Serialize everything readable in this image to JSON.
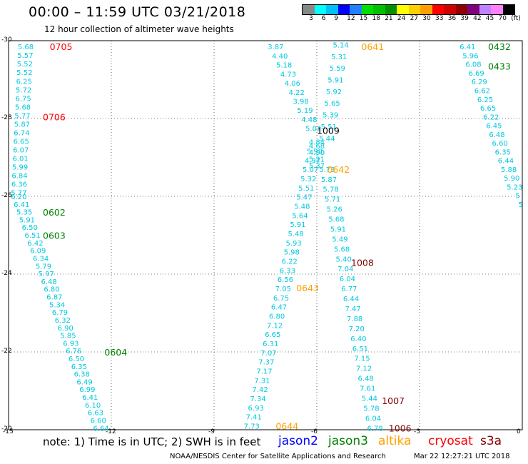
{
  "header": {
    "title": "00:00 – 11:59 UTC 03/21/2018",
    "subtitle": "12 hour collection of altimeter wave heights"
  },
  "scale": {
    "colors": [
      "#888888",
      "#00ffff",
      "#00bfff",
      "#0000ff",
      "#2080ff",
      "#00e000",
      "#00c000",
      "#009000",
      "#ffff00",
      "#ffd000",
      "#ffa000",
      "#ff0000",
      "#d00000",
      "#900000",
      "#800080",
      "#c080ff",
      "#ff80ff",
      "#000000"
    ],
    "labels": [
      "3",
      "6",
      "9",
      "12",
      "15",
      "18",
      "21",
      "24",
      "27",
      "30",
      "33",
      "36",
      "39",
      "42",
      "45",
      "70",
      "(ft)"
    ]
  },
  "note": "note:  1) Time is in UTC;  2) SWH is in feet",
  "legend": [
    {
      "name": "jason2",
      "color": "#0000ff"
    },
    {
      "name": "jason3",
      "color": "#008000"
    },
    {
      "name": "altika",
      "color": "#ffa000"
    },
    {
      "name": "cryosat",
      "color": "#ff0000"
    },
    {
      "name": "s3a",
      "color": "#800000"
    }
  ],
  "credit": "NOAA/NESDIS Center for Satellite Applications and Research",
  "credit_time": "Mar 22 12:27:21 UTC 2018",
  "chart_data": {
    "type": "scatter",
    "xlim": [
      -15,
      0
    ],
    "ylim": [
      -30,
      -20
    ],
    "x_ticks": [
      "-15",
      "-12",
      "-9",
      "-6",
      "-3",
      "0"
    ],
    "y_ticks": [
      "-20",
      "-22",
      "-24",
      "-26",
      "-28",
      "-30"
    ],
    "grid": true,
    "tracks": [
      {
        "x1": -12.3,
        "y1": -20.05,
        "x2": -14.7,
        "y2": -26.0,
        "values": [
          "6.64",
          "6.60",
          "6.63",
          "6.10",
          "6.41",
          "6.99",
          "6.49",
          "6.38",
          "6.35",
          "6.50",
          "6.76",
          "6.93",
          "5.85",
          "6.90",
          "6.32",
          "6.79",
          "5.34",
          "6.87",
          "6.80",
          "6.48",
          "5.97",
          "5.79",
          "6.34",
          "6.09",
          "6.42",
          "6.51",
          "6.50",
          "5.91",
          "5.35",
          "6.41",
          "6.20"
        ]
      },
      {
        "x1": -14.7,
        "y1": -26.1,
        "x2": -14.5,
        "y2": -29.85,
        "values": [
          "5.77",
          "6.36",
          "6.84",
          "5.99",
          "6.01",
          "6.07",
          "6.65",
          "6.74",
          "5.87",
          "5.77",
          "5.68",
          "6.75",
          "5.72",
          "6.25",
          "5.52",
          "5.52",
          "5.57",
          "5.68"
        ]
      },
      {
        "x1": -7.9,
        "y1": -20.1,
        "x2": -6.0,
        "y2": -27.4,
        "values": [
          "7.73",
          "7.41",
          "6.93",
          "7.34",
          "7.42",
          "7.31",
          "7.17",
          "7.37",
          "7.07",
          "6.31",
          "6.65",
          "7.12",
          "6.80",
          "6.47",
          "6.75",
          "7.05",
          "6.56",
          "6.33",
          "6.22",
          "5.98",
          "5.93",
          "5.48",
          "5.91",
          "5.64",
          "5.48",
          "5.47",
          "5.51",
          "5.32",
          "5.07",
          "4.97",
          "5.90",
          "4.84"
        ]
      },
      {
        "x1": -4.3,
        "y1": -20.05,
        "x2": -5.7,
        "y2": -26.7,
        "values": [
          "6.78",
          "6.04",
          "5.78",
          "5.44",
          "7.61",
          "6.48",
          "7.12",
          "7.15",
          "6.51",
          "6.40",
          "7.20",
          "7.88",
          "7.47",
          "6.44",
          "6.77",
          "6.04",
          "7.04",
          "5.40",
          "5.68",
          "5.49",
          "5.91",
          "5.68",
          "5.26",
          "5.71",
          "5.78",
          "5.87",
          "5.73"
        ]
      },
      {
        "x1": -5.7,
        "y1": -27.5,
        "x2": -5.3,
        "y2": -29.9,
        "values": [
          "5.44",
          "5.51",
          "5.39",
          "5.65",
          "5.92",
          "5.91",
          "5.59",
          "5.31",
          "5.14"
        ]
      },
      {
        "x1": -6.0,
        "y1": -26.8,
        "x2": -6.0,
        "y2": -27.3,
        "values": [
          "5.37",
          "5.21",
          "4.90",
          "4.68"
        ]
      },
      {
        "x1": -6.1,
        "y1": -27.75,
        "x2": -7.2,
        "y2": -29.85,
        "values": [
          "5.02",
          "4.48",
          "5.19",
          "3.98",
          "4.22",
          "4.06",
          "4.73",
          "5.18",
          "4.40",
          "3.87"
        ]
      },
      {
        "x1": -0.05,
        "y1": -25.8,
        "x2": -1.6,
        "y2": -29.85,
        "values": [
          "5",
          "5",
          "5.23",
          "5.90",
          "5.88",
          "6.44",
          "6.35",
          "6.60",
          "6.48",
          "6.45",
          "6.22",
          "6.65",
          "6.25",
          "6.62",
          "6.29",
          "6.69",
          "6.08",
          "5.96",
          "6.41"
        ]
      }
    ],
    "labels": [
      {
        "text": "0604",
        "x": -12.2,
        "y": -22.0,
        "color": "#008000"
      },
      {
        "text": "0603",
        "x": -14.0,
        "y": -25.0,
        "color": "#008000"
      },
      {
        "text": "0602",
        "x": -14.0,
        "y": -25.6,
        "color": "#008000"
      },
      {
        "text": "0706",
        "x": -14.0,
        "y": -28.05,
        "color": "#ff0000"
      },
      {
        "text": "0705",
        "x": -13.8,
        "y": -29.85,
        "color": "#ff0000"
      },
      {
        "text": "0644",
        "x": -7.2,
        "y": -20.1,
        "color": "#ffa000"
      },
      {
        "text": "0643",
        "x": -6.6,
        "y": -23.65,
        "color": "#ffa000"
      },
      {
        "text": "0642",
        "x": -5.7,
        "y": -26.7,
        "color": "#ffa000"
      },
      {
        "text": "0641",
        "x": -4.7,
        "y": -29.85,
        "color": "#ffa000"
      },
      {
        "text": "1006",
        "x": -3.9,
        "y": -20.05,
        "color": "#800000"
      },
      {
        "text": "1007",
        "x": -4.1,
        "y": -20.75,
        "color": "#800000"
      },
      {
        "text": "1008",
        "x": -5.0,
        "y": -24.3,
        "color": "#800000"
      },
      {
        "text": "1009",
        "x": -6.0,
        "y": -27.7,
        "color": "#000000"
      },
      {
        "text": "0433",
        "x": -1.0,
        "y": -29.35,
        "color": "#008000"
      },
      {
        "text": "0432",
        "x": -1.0,
        "y": -29.85,
        "color": "#008000"
      }
    ]
  }
}
